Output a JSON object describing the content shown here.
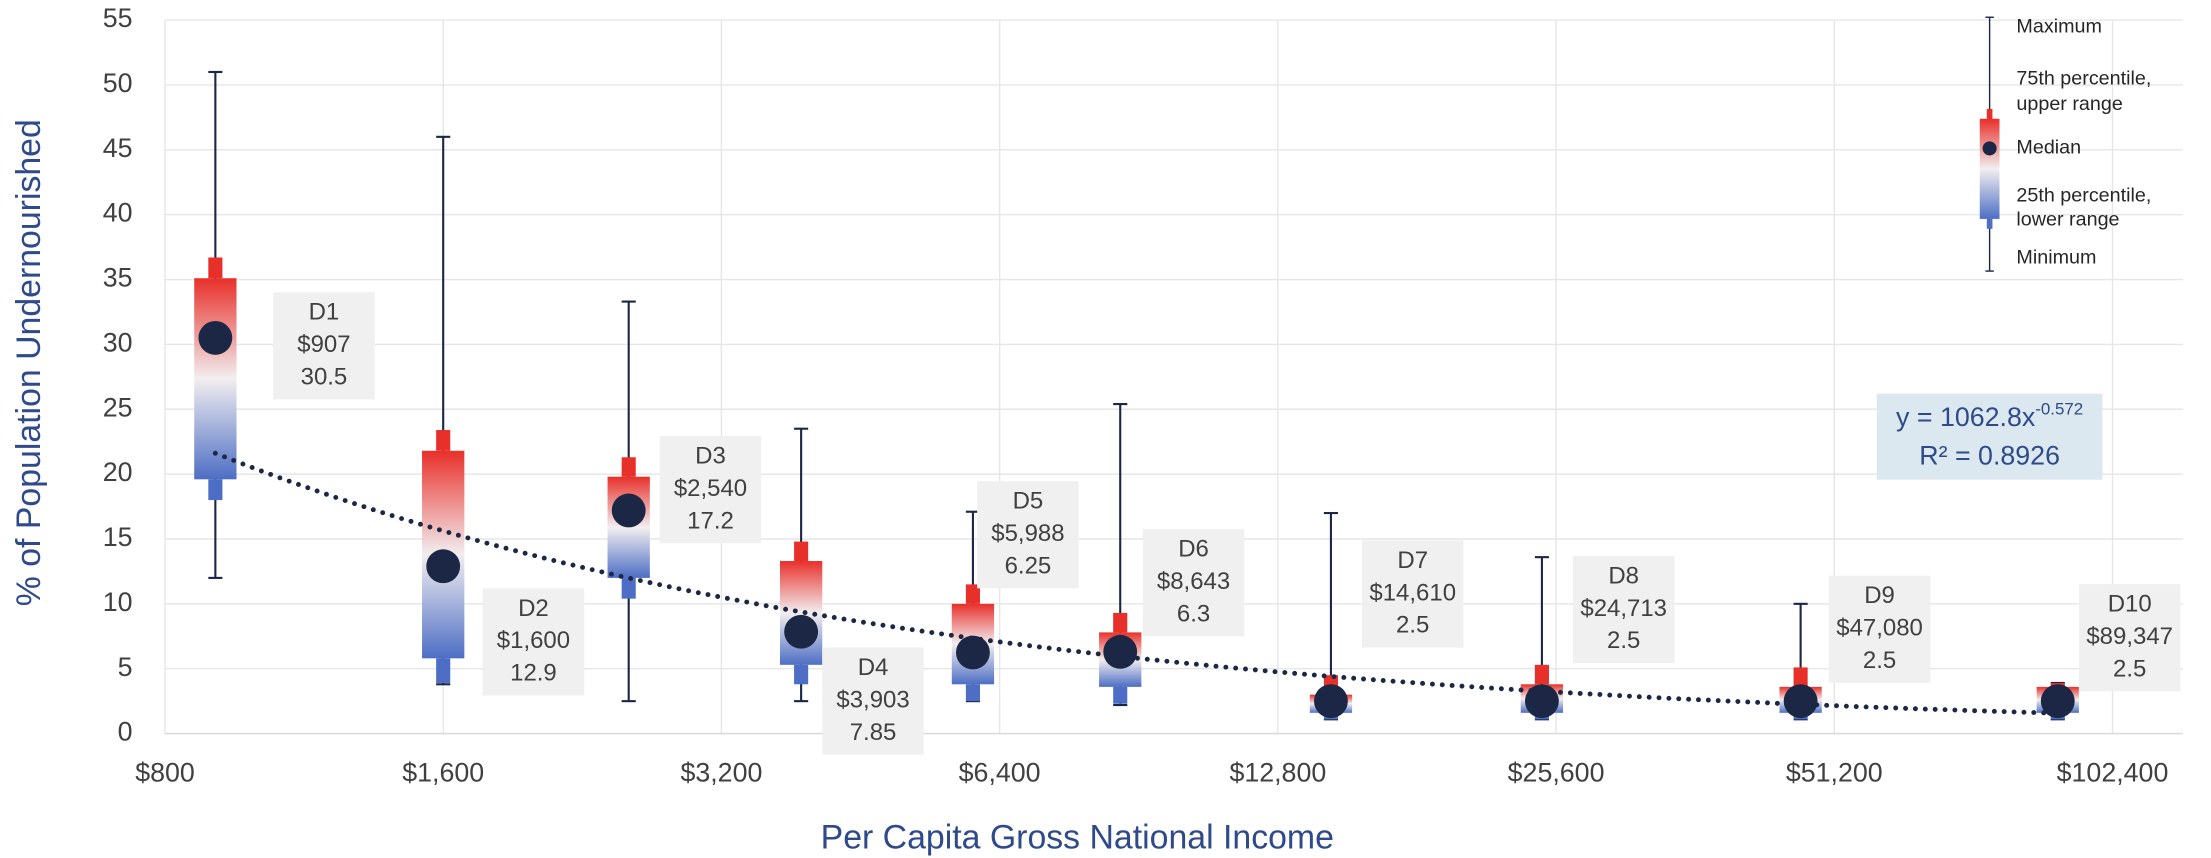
{
  "chart_data": {
    "type": "boxplot",
    "x_axis_label": "Per Capita Gross National Income",
    "y_axis_label": "% of Population Undernourished",
    "xscale": "log2",
    "xlim": [
      800,
      122000
    ],
    "ylim": [
      0,
      55
    ],
    "xticks": [
      {
        "value": 800,
        "label": "$800"
      },
      {
        "value": 1600,
        "label": "$1,600"
      },
      {
        "value": 3200,
        "label": "$3,200"
      },
      {
        "value": 6400,
        "label": "$6,400"
      },
      {
        "value": 12800,
        "label": "$12,800"
      },
      {
        "value": 25600,
        "label": "$25,600"
      },
      {
        "value": 51200,
        "label": "$51,200"
      },
      {
        "value": 102400,
        "label": "$102,400"
      }
    ],
    "yticks": [
      0,
      5,
      10,
      15,
      20,
      25,
      30,
      35,
      40,
      45,
      50,
      55
    ],
    "grid": true,
    "upper_color": "#e8302a",
    "lower_color": "#4d6ec4",
    "mark_color": "#1b2745",
    "deciles": [
      {
        "name": "D1",
        "x": 907,
        "x_label": "$907",
        "median": 30.5,
        "min": 12,
        "max": 51,
        "q1": 19.6,
        "q3": 35.1,
        "lower": 18.0,
        "upper": 36.7
      },
      {
        "name": "D2",
        "x": 1600,
        "x_label": "$1,600",
        "median": 12.9,
        "min": 3.8,
        "max": 46,
        "q1": 5.8,
        "q3": 21.8,
        "lower": 3.9,
        "upper": 23.4
      },
      {
        "name": "D3",
        "x": 2540,
        "x_label": "$2,540",
        "median": 17.2,
        "min": 2.5,
        "max": 33.3,
        "q1": 12,
        "q3": 19.8,
        "lower": 10.4,
        "upper": 21.3
      },
      {
        "name": "D4",
        "x": 3903,
        "x_label": "$3,903",
        "median": 7.85,
        "min": 2.5,
        "max": 23.5,
        "q1": 5.3,
        "q3": 13.3,
        "lower": 3.8,
        "upper": 14.8
      },
      {
        "name": "D5",
        "x": 5988,
        "x_label": "$5,988",
        "median": 6.25,
        "min": 2.5,
        "max": 17.1,
        "q1": 3.8,
        "q3": 10,
        "lower": 2.5,
        "upper": 11.5
      },
      {
        "name": "D6",
        "x": 8643,
        "x_label": "$8,643",
        "median": 6.3,
        "min": 2.2,
        "max": 25.4,
        "q1": 3.6,
        "q3": 7.8,
        "lower": 2.3,
        "upper": 9.3
      },
      {
        "name": "D7",
        "x": 14610,
        "x_label": "$14,610",
        "median": 2.5,
        "min": 1.1,
        "max": 17,
        "q1": 1.6,
        "q3": 3,
        "lower": 1.1,
        "upper": 4.5
      },
      {
        "name": "D8",
        "x": 24713,
        "x_label": "$24,713",
        "median": 2.5,
        "min": 1.1,
        "max": 13.6,
        "q1": 1.6,
        "q3": 3.8,
        "lower": 1.1,
        "upper": 5.3
      },
      {
        "name": "D9",
        "x": 47080,
        "x_label": "$47,080",
        "median": 2.5,
        "min": 1.1,
        "max": 10,
        "q1": 1.6,
        "q3": 3.6,
        "lower": 1.1,
        "upper": 5.1
      },
      {
        "name": "D10",
        "x": 89347,
        "x_label": "$89,347",
        "median": 2.5,
        "min": 1.1,
        "max": 3.9,
        "q1": 1.6,
        "q3": 3.6,
        "lower": 1.1,
        "upper": 3.9
      }
    ],
    "trendline": {
      "coefficient": 1062.8,
      "exponent": -0.572,
      "r2": 0.8926,
      "equation_label": "y = 1062.8x",
      "exponent_label": "-0.572",
      "r2_label": "R² = 0.8926"
    },
    "legend": {
      "maximum": "Maximum",
      "upper": [
        "75th percentile,",
        "upper range"
      ],
      "median": "Median",
      "lower": [
        "25th percentile,",
        "lower range"
      ],
      "minimum": "Minimum"
    }
  }
}
